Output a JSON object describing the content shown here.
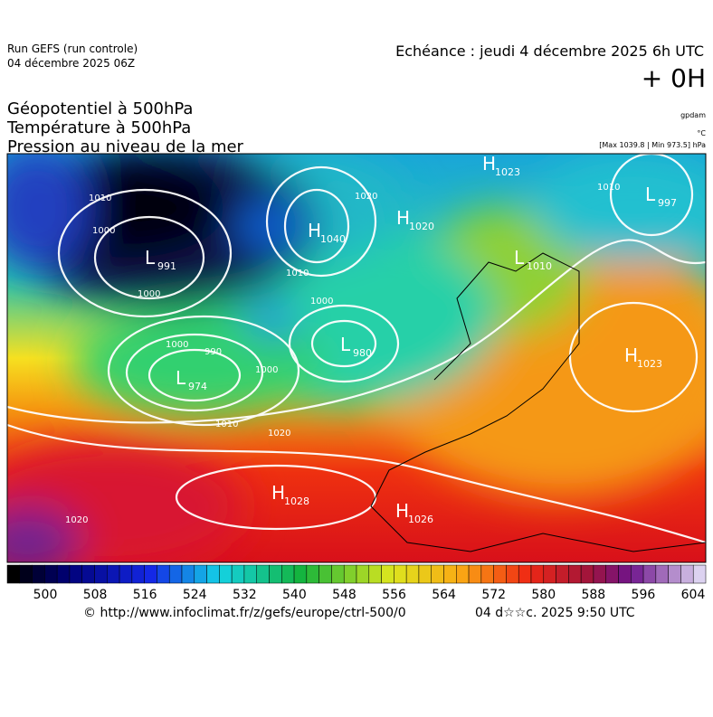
{
  "header": {
    "run": "Run GEFS (run controle)",
    "run_date": "04 décembre 2025 06Z",
    "valid_time": "Echéance : jeudi 4 décembre 2025 6h UTC",
    "lead": "+ 0H",
    "titles": [
      "Géopotentiel à 500hPa",
      "Température à 500hPa",
      "Pression au niveau de la mer"
    ],
    "units": [
      "gpdam",
      "°C",
      "[Max 1039.8 | Min 973.5] hPa"
    ]
  },
  "map": {
    "centers": [
      {
        "letter": "L",
        "value": 991
      },
      {
        "letter": "H",
        "value": 1040
      },
      {
        "letter": "H",
        "value": 1020
      },
      {
        "letter": "H",
        "value": 1023
      },
      {
        "letter": "L",
        "value": 1010
      },
      {
        "letter": "L",
        "value": 997
      },
      {
        "letter": "L",
        "value": 980
      },
      {
        "letter": "L",
        "value": 974
      },
      {
        "letter": "H",
        "value": 1023
      },
      {
        "letter": "H",
        "value": 1028
      },
      {
        "letter": "H",
        "value": 1026
      }
    ],
    "isobar_labels": [
      1010,
      1000,
      1000,
      1010,
      1000,
      990,
      1000,
      1000,
      1010,
      1020,
      1020,
      1010,
      1020
    ]
  },
  "colorbar": {
    "ticks": [
      500,
      508,
      516,
      524,
      532,
      540,
      548,
      556,
      564,
      572,
      580,
      588,
      596,
      604
    ]
  },
  "footer": {
    "source": "© http://www.infoclimat.fr/z/gefs/europe/ctrl-500/0",
    "generated": "04 d☆☆c. 2025  9:50 UTC"
  }
}
